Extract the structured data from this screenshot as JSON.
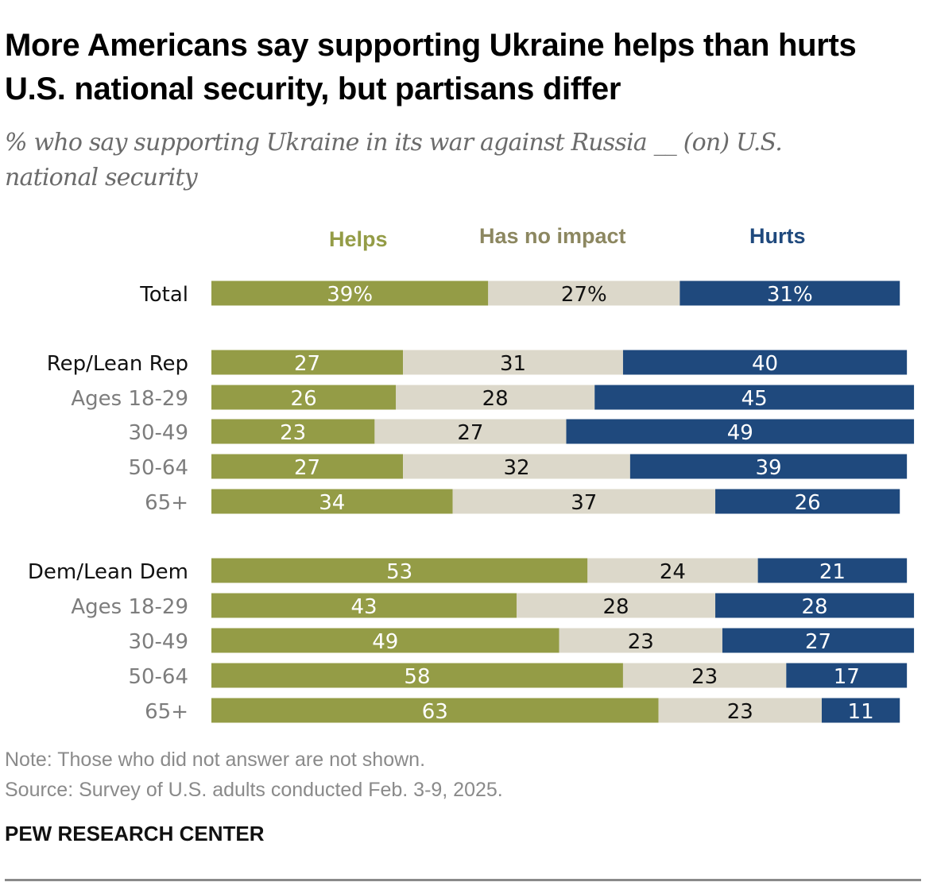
{
  "header": {
    "title": "More Americans say supporting Ukraine helps than hurts U.S. national security, but partisans differ",
    "subtitle": "% who say supporting Ukraine in its war against Russia __ (on) U.S. national security"
  },
  "legend": [
    {
      "label": "Helps",
      "color": "#949c46"
    },
    {
      "label": "Has no impact",
      "color": "#8c8760"
    },
    {
      "label": "Hurts",
      "color": "#1f497d"
    }
  ],
  "colors": {
    "helps": "#949c46",
    "no_impact": "#dcd8ca",
    "hurts": "#1f497d",
    "label_primary": "#111111",
    "label_secondary": "#7d7d7d"
  },
  "chart_data": {
    "type": "bar",
    "orientation": "horizontal-stacked",
    "title": "More Americans say supporting Ukraine helps than hurts U.S. national security, but partisans differ",
    "subtitle": "% who say supporting Ukraine in its war against Russia __ (on) U.S. national security",
    "series_names": [
      "Helps",
      "Has no impact",
      "Hurts"
    ],
    "categories": [
      "Total",
      "Rep/Lean Rep",
      "Ages 18-29",
      "30-49",
      "50-64",
      "65+",
      "Dem/Lean Dem",
      "Ages 18-29",
      "30-49",
      "50-64",
      "65+"
    ],
    "category_style": [
      "primary",
      "primary",
      "secondary",
      "secondary",
      "secondary",
      "secondary",
      "primary",
      "secondary",
      "secondary",
      "secondary",
      "secondary"
    ],
    "group_break_after": [
      0,
      5
    ],
    "series": [
      {
        "name": "Helps",
        "values": [
          39,
          27,
          26,
          23,
          27,
          34,
          53,
          43,
          49,
          58,
          63
        ]
      },
      {
        "name": "Has no impact",
        "values": [
          27,
          31,
          28,
          27,
          32,
          37,
          24,
          28,
          23,
          23,
          23
        ]
      },
      {
        "name": "Hurts",
        "values": [
          31,
          40,
          45,
          49,
          39,
          26,
          21,
          28,
          27,
          17,
          11
        ]
      }
    ],
    "data_label_suffix_first_row": "%",
    "xlim": [
      0,
      100
    ],
    "grid": false,
    "legend_position": "top"
  },
  "footer": {
    "note": "Note: Those who did not answer are not shown.",
    "source": "Source: Survey of U.S. adults conducted Feb. 3-9, 2025.",
    "brand": "PEW RESEARCH CENTER"
  }
}
